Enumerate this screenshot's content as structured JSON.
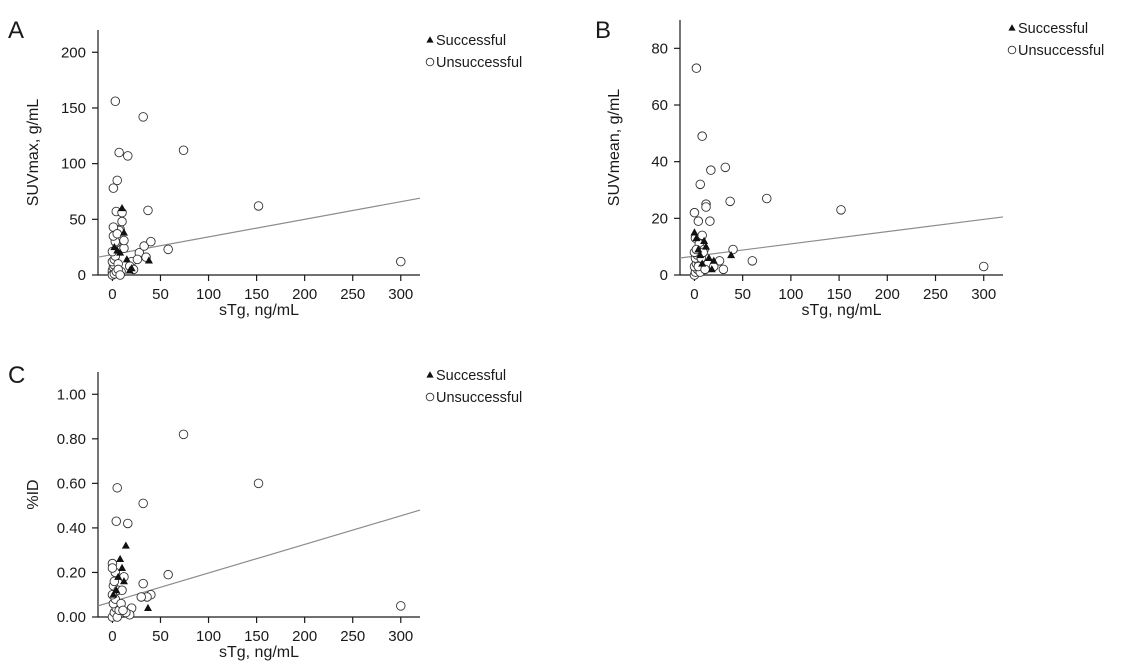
{
  "chart_data": [
    {
      "panel": "A",
      "type": "scatter",
      "xlabel": "sTg, ng/mL",
      "ylabel": "SUVmax, g/mL",
      "xlim": [
        -15,
        320
      ],
      "ylim": [
        0,
        220
      ],
      "xticks": [
        0,
        50,
        100,
        150,
        200,
        250,
        300
      ],
      "yticks": [
        0,
        50,
        100,
        150,
        200
      ],
      "ytick_labels": [
        "0",
        "50",
        "100",
        "150",
        "200"
      ],
      "legend_position": "top-right",
      "fit_line": {
        "x": [
          -15,
          320
        ],
        "y": [
          16,
          69
        ]
      },
      "series": [
        {
          "name": "Successful",
          "marker": "triangle",
          "points": [
            [
              2,
              25
            ],
            [
              5,
              22
            ],
            [
              8,
              20
            ],
            [
              10,
              60
            ],
            [
              12,
              38
            ],
            [
              15,
              14
            ],
            [
              18,
              4
            ],
            [
              20,
              6
            ],
            [
              38,
              13
            ]
          ]
        },
        {
          "name": "Unsuccessful",
          "marker": "circle",
          "points": [
            [
              1,
              78
            ],
            [
              3,
              156
            ],
            [
              4,
              57
            ],
            [
              5,
              85
            ],
            [
              7,
              110
            ],
            [
              8,
              41
            ],
            [
              10,
              56
            ],
            [
              10,
              48
            ],
            [
              12,
              24
            ],
            [
              16,
              107
            ],
            [
              20,
              12
            ],
            [
              28,
              20
            ],
            [
              32,
              142
            ],
            [
              33,
              26
            ],
            [
              37,
              58
            ],
            [
              40,
              30
            ],
            [
              58,
              23
            ],
            [
              74,
              112
            ],
            [
              152,
              62
            ],
            [
              300,
              12
            ],
            [
              0,
              2
            ],
            [
              0,
              4
            ],
            [
              1,
              7
            ],
            [
              2,
              9
            ],
            [
              0,
              12
            ],
            [
              2,
              14
            ],
            [
              3,
              17
            ],
            [
              0,
              21
            ],
            [
              4,
              29
            ],
            [
              7,
              40
            ],
            [
              1,
              43
            ],
            [
              3,
              30
            ],
            [
              6,
              10
            ],
            [
              9,
              3
            ],
            [
              12,
              31
            ],
            [
              18,
              8
            ],
            [
              22,
              5
            ],
            [
              26,
              14
            ],
            [
              35,
              16
            ],
            [
              0,
              0
            ],
            [
              2,
              1
            ],
            [
              4,
              3
            ],
            [
              6,
              5
            ],
            [
              8,
              0
            ],
            [
              1,
              35
            ],
            [
              5,
              37
            ]
          ]
        }
      ]
    },
    {
      "panel": "B",
      "type": "scatter",
      "xlabel": "sTg, ng/mL",
      "ylabel": "SUVmean, g/mL",
      "xlim": [
        -15,
        320
      ],
      "ylim": [
        0,
        90
      ],
      "xticks": [
        0,
        50,
        100,
        150,
        200,
        250,
        300
      ],
      "yticks": [
        0,
        20,
        40,
        60,
        80
      ],
      "ytick_labels": [
        "0",
        "20",
        "40",
        "60",
        "80"
      ],
      "legend_position": "top-right",
      "fit_line": {
        "x": [
          -15,
          320
        ],
        "y": [
          6,
          20.5
        ]
      },
      "series": [
        {
          "name": "Successful",
          "marker": "triangle",
          "points": [
            [
              0,
              15
            ],
            [
              2,
              13
            ],
            [
              4,
              9
            ],
            [
              6,
              7
            ],
            [
              8,
              4
            ],
            [
              10,
              12
            ],
            [
              12,
              10
            ],
            [
              15,
              6
            ],
            [
              18,
              2
            ],
            [
              20,
              5
            ],
            [
              38,
              7
            ]
          ]
        },
        {
          "name": "Unsuccessful",
          "marker": "circle",
          "points": [
            [
              2,
              73
            ],
            [
              8,
              49
            ],
            [
              6,
              32
            ],
            [
              12,
              25
            ],
            [
              12,
              24
            ],
            [
              17,
              37
            ],
            [
              16,
              19
            ],
            [
              32,
              38
            ],
            [
              37,
              26
            ],
            [
              75,
              27
            ],
            [
              152,
              23
            ],
            [
              300,
              3
            ],
            [
              0,
              22
            ],
            [
              4,
              19
            ],
            [
              1,
              13
            ],
            [
              5,
              11
            ],
            [
              8,
              14
            ],
            [
              10,
              9
            ],
            [
              14,
              4
            ],
            [
              20,
              3
            ],
            [
              26,
              5
            ],
            [
              30,
              2
            ],
            [
              40,
              9
            ],
            [
              60,
              5
            ],
            [
              0,
              0
            ],
            [
              1,
              1
            ],
            [
              3,
              2
            ],
            [
              0,
              3
            ],
            [
              2,
              4
            ],
            [
              4,
              5
            ],
            [
              6,
              1
            ],
            [
              1,
              6
            ],
            [
              3,
              7
            ],
            [
              0,
              8
            ],
            [
              2,
              9
            ],
            [
              4,
              3
            ],
            [
              7,
              6
            ],
            [
              9,
              8
            ],
            [
              11,
              2
            ]
          ]
        }
      ]
    },
    {
      "panel": "C",
      "type": "scatter",
      "xlabel": "sTg, ng/mL",
      "ylabel": "%ID",
      "xlim": [
        -15,
        320
      ],
      "ylim": [
        0,
        1.1
      ],
      "xticks": [
        0,
        50,
        100,
        150,
        200,
        250,
        300
      ],
      "yticks": [
        0,
        0.2,
        0.4,
        0.6,
        0.8,
        1.0
      ],
      "ytick_labels": [
        "0.00",
        "0.20",
        "0.40",
        "0.60",
        "0.80",
        "1.00"
      ],
      "legend_position": "top-right",
      "fit_line": {
        "x": [
          -15,
          320
        ],
        "y": [
          0.05,
          0.48
        ]
      },
      "series": [
        {
          "name": "Successful",
          "marker": "triangle",
          "points": [
            [
              1,
              0.1
            ],
            [
              4,
              0.12
            ],
            [
              6,
              0.18
            ],
            [
              8,
              0.26
            ],
            [
              10,
              0.22
            ],
            [
              12,
              0.16
            ],
            [
              14,
              0.32
            ],
            [
              37,
              0.04
            ]
          ]
        },
        {
          "name": "Unsuccessful",
          "marker": "circle",
          "points": [
            [
              5,
              0.58
            ],
            [
              4,
              0.43
            ],
            [
              16,
              0.42
            ],
            [
              32,
              0.51
            ],
            [
              74,
              0.82
            ],
            [
              152,
              0.6
            ],
            [
              300,
              0.05
            ],
            [
              58,
              0.19
            ],
            [
              32,
              0.15
            ],
            [
              40,
              0.1
            ],
            [
              36,
              0.09
            ],
            [
              30,
              0.09
            ],
            [
              0,
              0.24
            ],
            [
              3,
              0.2
            ],
            [
              1,
              0.14
            ],
            [
              6,
              0.12
            ],
            [
              10,
              0.12
            ],
            [
              12,
              0.18
            ],
            [
              20,
              0.04
            ],
            [
              18,
              0.01
            ],
            [
              14,
              0.02
            ],
            [
              0,
              0.0
            ],
            [
              2,
              0.02
            ],
            [
              4,
              0.04
            ],
            [
              1,
              0.06
            ],
            [
              3,
              0.08
            ],
            [
              0,
              0.1
            ],
            [
              5,
              0.0
            ],
            [
              7,
              0.03
            ],
            [
              9,
              0.06
            ],
            [
              2,
              0.16
            ],
            [
              0,
              0.22
            ],
            [
              11,
              0.03
            ]
          ]
        }
      ]
    }
  ]
}
